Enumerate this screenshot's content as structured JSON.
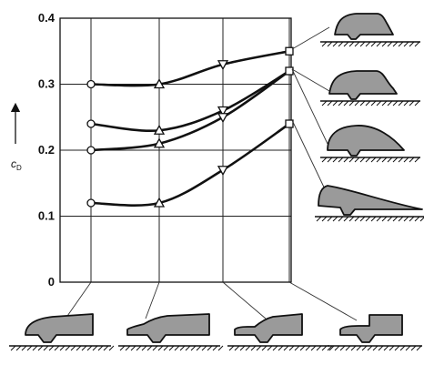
{
  "chart_data": {
    "type": "line",
    "ylabel": "cD",
    "ylabel_main": "c",
    "ylabel_sub": "D",
    "ylim": [
      0,
      0.4
    ],
    "yticks": [
      {
        "value": 0,
        "label": "0"
      },
      {
        "value": 0.1,
        "label": "0.1"
      },
      {
        "value": 0.2,
        "label": "0.2"
      },
      {
        "value": 0.3,
        "label": "0.3"
      },
      {
        "value": 0.4,
        "label": "0.4"
      }
    ],
    "grid": true,
    "x_positions": [
      1,
      2,
      3,
      4
    ],
    "x_categories": [
      "front-shape-1",
      "front-shape-2",
      "front-shape-3",
      "front-shape-4"
    ],
    "rear_shapes": [
      "rear-shape-1",
      "rear-shape-2",
      "rear-shape-3",
      "rear-shape-4"
    ],
    "series": [
      {
        "marker": "circle",
        "values": [
          0.3,
          0.3,
          null,
          null
        ]
      },
      {
        "marker": "circle",
        "values": [
          0.24,
          null,
          null,
          null
        ]
      },
      {
        "marker": "circle",
        "values": [
          0.2,
          null,
          null,
          null
        ]
      },
      {
        "marker": "circle",
        "values": [
          0.12,
          null,
          null,
          null
        ]
      },
      {
        "marker": "triangle-up",
        "values": [
          null,
          0.3,
          null,
          null
        ]
      },
      {
        "marker": "triangle-up",
        "values": [
          null,
          0.23,
          null,
          null
        ]
      },
      {
        "marker": "triangle-up",
        "values": [
          null,
          0.21,
          null,
          null
        ]
      },
      {
        "marker": "triangle-up",
        "values": [
          null,
          0.12,
          null,
          null
        ]
      },
      {
        "marker": "triangle-down",
        "values": [
          null,
          null,
          0.33,
          null
        ]
      },
      {
        "marker": "triangle-down",
        "values": [
          null,
          null,
          0.26,
          null
        ]
      },
      {
        "marker": "triangle-down",
        "values": [
          null,
          null,
          0.25,
          null
        ]
      },
      {
        "marker": "triangle-down",
        "values": [
          null,
          null,
          0.17,
          null
        ]
      },
      {
        "marker": "square",
        "values": [
          null,
          null,
          null,
          0.35
        ]
      },
      {
        "marker": "square",
        "values": [
          null,
          null,
          null,
          0.32
        ]
      },
      {
        "marker": "square",
        "values": [
          null,
          null,
          null,
          0.24
        ]
      }
    ],
    "curves": [
      {
        "points": [
          [
            1,
            0.3
          ],
          [
            2,
            0.3
          ],
          [
            3,
            0.33
          ],
          [
            4,
            0.35
          ]
        ]
      },
      {
        "points": [
          [
            1,
            0.24
          ],
          [
            2,
            0.23
          ],
          [
            3,
            0.26
          ],
          [
            4,
            0.32
          ]
        ]
      },
      {
        "points": [
          [
            1,
            0.2
          ],
          [
            2,
            0.21
          ],
          [
            3,
            0.25
          ],
          [
            4,
            0.32
          ]
        ]
      },
      {
        "points": [
          [
            1,
            0.12
          ],
          [
            2,
            0.12
          ],
          [
            3,
            0.17
          ],
          [
            4,
            0.24
          ]
        ]
      }
    ],
    "markers": [
      {
        "x": 1,
        "y": 0.3,
        "shape": "circle"
      },
      {
        "x": 1,
        "y": 0.24,
        "shape": "circle"
      },
      {
        "x": 1,
        "y": 0.2,
        "shape": "circle"
      },
      {
        "x": 1,
        "y": 0.12,
        "shape": "circle"
      },
      {
        "x": 2,
        "y": 0.3,
        "shape": "triangle-up"
      },
      {
        "x": 2,
        "y": 0.23,
        "shape": "triangle-up"
      },
      {
        "x": 2,
        "y": 0.21,
        "shape": "triangle-up"
      },
      {
        "x": 2,
        "y": 0.12,
        "shape": "triangle-up"
      },
      {
        "x": 3,
        "y": 0.33,
        "shape": "triangle-down"
      },
      {
        "x": 3,
        "y": 0.26,
        "shape": "triangle-down"
      },
      {
        "x": 3,
        "y": 0.25,
        "shape": "triangle-down"
      },
      {
        "x": 3,
        "y": 0.17,
        "shape": "triangle-down"
      },
      {
        "x": 4,
        "y": 0.35,
        "shape": "square"
      },
      {
        "x": 4,
        "y": 0.32,
        "shape": "square"
      },
      {
        "x": 4,
        "y": 0.24,
        "shape": "square"
      }
    ]
  },
  "colors": {
    "ink": "#111111",
    "shape_fill": "#9a9a9a",
    "background": "#ffffff"
  }
}
